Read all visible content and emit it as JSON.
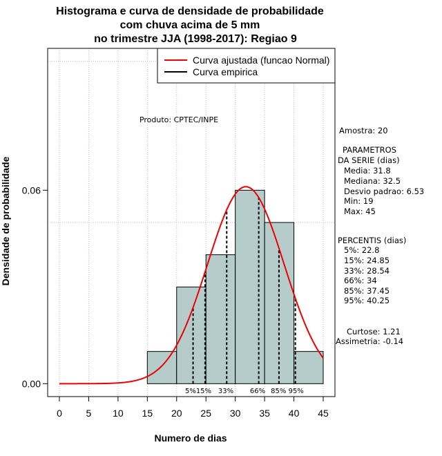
{
  "chart_data": {
    "type": "bar",
    "title": [
      "Histograma e curva de densidade de probabilidade",
      "com chuva acima de 5 mm",
      "no trimestre JJA (1998-2017): Regiao 9"
    ],
    "xlabel": "Numero de dias",
    "ylabel": "Densidade de probabilidade",
    "xlim": [
      -2,
      47
    ],
    "ylim": [
      -0.004,
      0.104
    ],
    "x_ticks": [
      0,
      5,
      10,
      15,
      20,
      25,
      30,
      35,
      40,
      45
    ],
    "x_tick_labels": [
      "0",
      "5",
      "10",
      "15",
      "20",
      "25",
      "30",
      "35",
      "40",
      "45"
    ],
    "y_ticks": [
      0.0,
      0.06
    ],
    "y_tick_labels": [
      "0.00",
      "0.06"
    ],
    "bins": [
      {
        "start": 15,
        "end": 20,
        "density": 0.01
      },
      {
        "start": 20,
        "end": 25,
        "density": 0.03
      },
      {
        "start": 25,
        "end": 30,
        "density": 0.04
      },
      {
        "start": 30,
        "end": 35,
        "density": 0.06
      },
      {
        "start": 35,
        "end": 40,
        "density": 0.05
      },
      {
        "start": 40,
        "end": 45,
        "density": 0.01
      }
    ],
    "bar_color": "#b5cccb",
    "fit": {
      "name": "Curva ajustada (funcao Normal)",
      "distribution": "normal",
      "mean": 31.8,
      "sd": 6.53,
      "color": "#ee0000"
    },
    "empirical_legend": {
      "name": "Curva empirica",
      "color": "#000000"
    },
    "grid_x": [
      0,
      5,
      10,
      15,
      20,
      25,
      30,
      35,
      40,
      45
    ],
    "grid_y": [
      0.05,
      0.1
    ],
    "legend_position": "top-right",
    "percentiles": [
      {
        "label": "5%",
        "x": 22.8
      },
      {
        "label": "15%",
        "x": 24.85
      },
      {
        "label": "33%",
        "x": 28.54
      },
      {
        "label": "66%",
        "x": 34
      },
      {
        "label": "85%",
        "x": 37.45
      },
      {
        "label": "95%",
        "x": 40.25
      }
    ],
    "percentile_labels": [
      "5%15%",
      "33%",
      "66%",
      "85% 95%"
    ],
    "annotation": "Produto: CPTEC/INPE"
  },
  "side_panel": {
    "amostra": "Amostra: 20",
    "params_title_1": "PARAMETROS",
    "params_title_2": "DA SERIE (dias)",
    "media": "Media: 31.8",
    "mediana": "Mediana: 32.5",
    "desvio": "Desvio padrao: 6.53",
    "min": "Min: 19",
    "max": "Max: 45",
    "percentis_title": "PERCENTIS (dias)",
    "p5": "5%: 22.8",
    "p15": "15%: 24.85",
    "p33": "33%: 28.54",
    "p66": "66%: 34",
    "p85": "85%: 37.45",
    "p95": "95%: 40.25",
    "curtose": "Curtose: 1.21",
    "assimetria": "Assimetria: -0.14"
  }
}
